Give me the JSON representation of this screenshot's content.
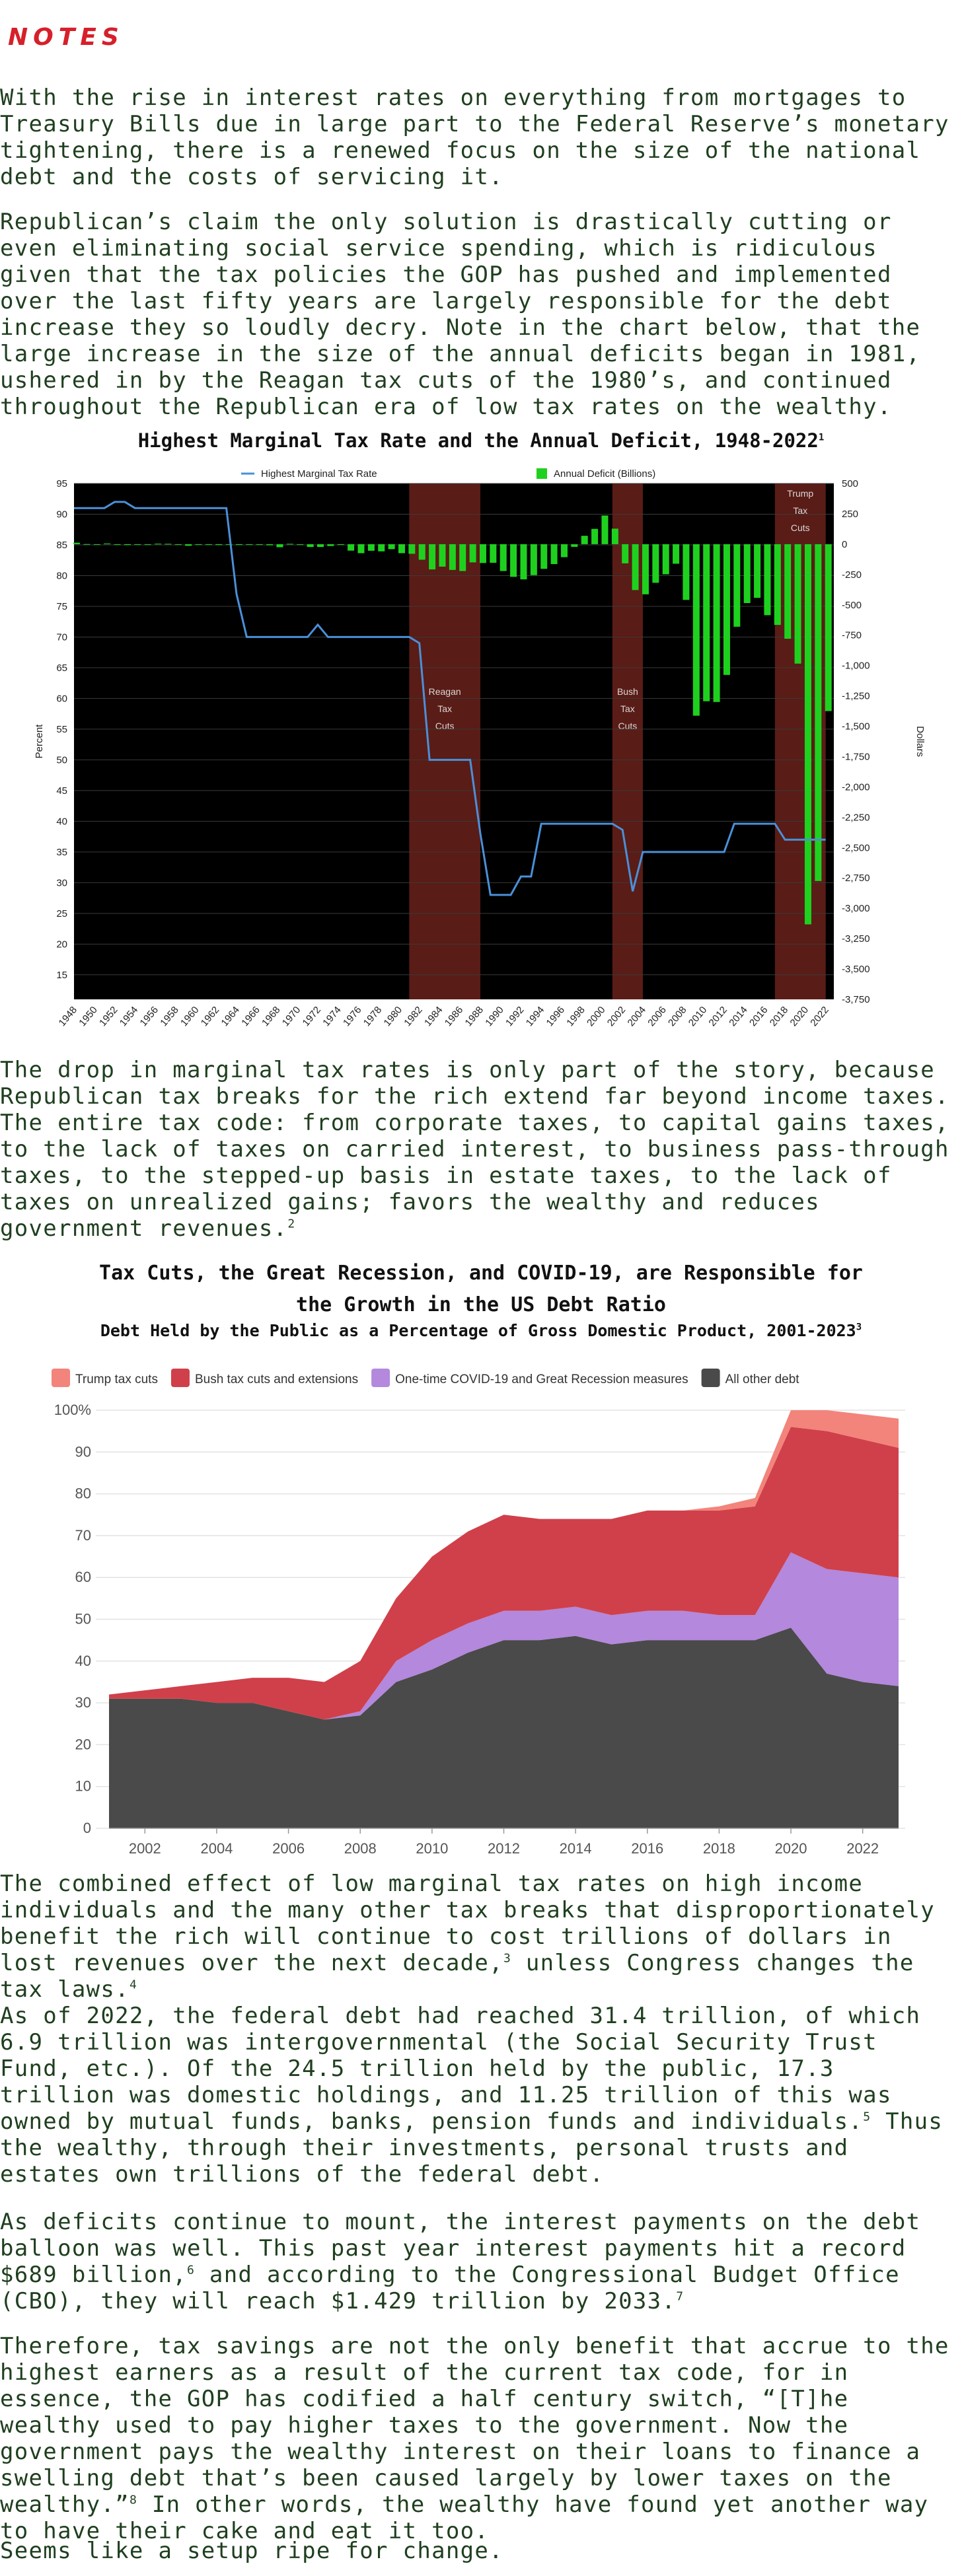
{
  "notes_heading": "NOTES",
  "paragraphs": {
    "p1": "With the rise in interest rates on everything from mortgages to Treasury Bills due in large part to the Federal Reserve’s monetary tightening, there is a renewed focus on the size of the national debt and the costs of servicing it.",
    "p2": "Republican’s claim the only solution is drastically cutting or even eliminating social service spending, which is ridiculous given that the tax policies the GOP has pushed and implemented over the last fifty years are largely responsible for the debt increase they so loudly decry.  Note in the chart below, that the large increase in the size of the annual deficits began in 1981, ushered in by the Reagan tax cuts of the 1980’s, and continued throughout the Republican era of low tax rates on the wealthy.",
    "p3": "The drop in marginal tax rates is only part of the story, because Republican tax breaks for the rich extend far beyond income taxes. The entire tax code:  from corporate taxes, to capital gains taxes, to the lack of taxes on carried interest, to business pass-through taxes, to the stepped-up basis in estate taxes, to the lack of taxes on unrealized gains; favors the wealthy and reduces government revenues.",
    "p3_sup": "2",
    "p4": "The combined effect of low marginal tax rates on high income individuals and the many other tax breaks that disproportionately benefit the rich will continue to cost trillions of dollars in lost revenues over the next decade,",
    "p4_sup1": "3",
    "p4b": " unless Congress changes the tax laws.",
    "p4_sup2": "4",
    "p5": "As of 2022, the federal debt had reached 31.4 trillion, of which 6.9 trillion was intergovernmental (the Social Security Trust Fund, etc.).  Of the 24.5 trillion held by the public, 17.3 trillion was domestic holdings, and 11.25 trillion of this was owned by mutual funds, banks, pension funds and individuals.",
    "p5_sup": "5",
    "p5b": "  Thus the wealthy, through their investments, personal trusts and estates own trillions of the federal debt.",
    "p6": "As deficits continue to mount, the interest payments on the debt balloon was well.  This past year interest payments hit a record $689 billion,",
    "p6_sup1": "6",
    "p6b": " and according to the Congressional Budget Office (CBO), they will reach $1.429 trillion by 2033.",
    "p6_sup2": "7",
    "p7": "Therefore, tax savings are not the only benefit that accrue to the highest earners as a result of the current tax code, for in essence, the GOP has codified a half century switch, “[T]he wealthy used to pay higher taxes to the government. Now the government pays the wealthy interest on their loans to finance a swelling debt that’s been caused largely by lower taxes on the wealthy.”",
    "p7_sup": "8",
    "p7b": "  In other words, the wealthy have found yet another way to have their cake and eat it too.",
    "p8": "Seems like a setup ripe for change."
  },
  "chart_data": [
    {
      "type": "line",
      "title": "Highest Marginal Tax Rate and the Annual Deficit, 1948-2022",
      "title_sup": "1",
      "background": "#000000",
      "legend_placement": "top",
      "series": [
        {
          "name": "Highest Marginal Tax Rate",
          "kind": "line",
          "axis": "left",
          "color": "#4a90d9",
          "points": [
            [
              1948,
              91
            ],
            [
              1951,
              91
            ],
            [
              1952,
              92
            ],
            [
              1953,
              92
            ],
            [
              1954,
              91
            ],
            [
              1963,
              91
            ],
            [
              1964,
              77
            ],
            [
              1965,
              70
            ],
            [
              1971,
              70
            ],
            [
              1972,
              72
            ],
            [
              1973,
              70
            ],
            [
              1981,
              70
            ],
            [
              1982,
              69
            ],
            [
              1983,
              50
            ],
            [
              1987,
              50
            ],
            [
              1988,
              38
            ],
            [
              1989,
              28
            ],
            [
              1991,
              28
            ],
            [
              1992,
              31
            ],
            [
              1993,
              31
            ],
            [
              1994,
              39.6
            ],
            [
              2001,
              39.6
            ],
            [
              2002,
              38.6
            ],
            [
              2003,
              28.6
            ],
            [
              2004,
              35
            ],
            [
              2012,
              35
            ],
            [
              2013,
              39.6
            ],
            [
              2017,
              39.6
            ],
            [
              2018,
              37
            ],
            [
              2022,
              37
            ]
          ]
        },
        {
          "name": "Annual Deficit (Billions)",
          "kind": "bar",
          "axis": "right",
          "color": "#1fd11f",
          "years": [
            1948,
            1949,
            1950,
            1951,
            1952,
            1953,
            1954,
            1955,
            1956,
            1957,
            1958,
            1959,
            1960,
            1961,
            1962,
            1963,
            1964,
            1965,
            1966,
            1967,
            1968,
            1969,
            1970,
            1971,
            1972,
            1973,
            1974,
            1975,
            1976,
            1977,
            1978,
            1979,
            1980,
            1981,
            1982,
            1983,
            1984,
            1985,
            1986,
            1987,
            1988,
            1989,
            1990,
            1991,
            1992,
            1993,
            1994,
            1995,
            1996,
            1997,
            1998,
            1999,
            2000,
            2001,
            2002,
            2003,
            2004,
            2005,
            2006,
            2007,
            2008,
            2009,
            2010,
            2011,
            2012,
            2013,
            2014,
            2015,
            2016,
            2017,
            2018,
            2019,
            2020,
            2021,
            2022
          ],
          "values": [
            12,
            1,
            -3,
            6,
            -2,
            -7,
            -1,
            -3,
            4,
            3,
            -3,
            -13,
            0,
            -3,
            -7,
            -5,
            -6,
            -1,
            -4,
            -9,
            -25,
            3,
            -3,
            -23,
            -23,
            -15,
            -6,
            -53,
            -74,
            -54,
            -59,
            -41,
            -74,
            -79,
            -128,
            -208,
            -185,
            -212,
            -221,
            -150,
            -155,
            -153,
            -221,
            -269,
            -290,
            -255,
            -203,
            -164,
            -107,
            -22,
            69,
            126,
            236,
            128,
            -158,
            -378,
            -413,
            -318,
            -248,
            -161,
            -459,
            -1413,
            -1294,
            -1300,
            -1077,
            -680,
            -485,
            -442,
            -585,
            -665,
            -779,
            -984,
            -3132,
            -2775,
            -1375
          ]
        }
      ],
      "x_ticks": [
        "1948",
        "1950",
        "1952",
        "1954",
        "1956",
        "1958",
        "1960",
        "1962",
        "1964",
        "1966",
        "1968",
        "1970",
        "1972",
        "1974",
        "1976",
        "1978",
        "1980",
        "1982",
        "1984",
        "1986",
        "1988",
        "1990",
        "1992",
        "1994",
        "1996",
        "1998",
        "2000",
        "2002",
        "2004",
        "2006",
        "2008",
        "2010",
        "2012",
        "2014",
        "2016",
        "2018",
        "2020",
        "2022"
      ],
      "y_left": {
        "label": "Percent",
        "ylim": [
          11,
          95
        ],
        "ticks": [
          "15",
          "20",
          "25",
          "30",
          "35",
          "40",
          "45",
          "50",
          "55",
          "60",
          "65",
          "70",
          "75",
          "80",
          "85",
          "90",
          "95"
        ]
      },
      "y_right": {
        "label": "Dollars",
        "ylim": [
          -3750,
          500
        ],
        "ticks": [
          "500",
          "250",
          "0",
          "-250",
          "-500",
          "-750",
          "-1,000",
          "-1,250",
          "-1,500",
          "-1,750",
          "-2,000",
          "-2,250",
          "-2,500",
          "-2,750",
          "-3,000",
          "-3,250",
          "-3,500",
          "-3,750"
        ]
      },
      "shaded_regions": [
        {
          "label": [
            "Reagan",
            "Tax",
            "Cuts"
          ],
          "from": 1981,
          "to": 1988,
          "color": "#5a1c16"
        },
        {
          "label": [
            "Bush",
            "Tax",
            "Cuts"
          ],
          "from": 2001,
          "to": 2004,
          "color": "#5a1c16"
        },
        {
          "label": [
            "Trump",
            "Tax",
            "Cuts"
          ],
          "from": 2017,
          "to": 2022,
          "color": "#5a1c16"
        }
      ],
      "grid": true
    },
    {
      "type": "area",
      "title_lines": [
        "Tax Cuts, the Great Recession, and COVID-19, are Responsible for",
        "the Growth in the US Debt Ratio"
      ],
      "subtitle": "Debt Held by the Public as a Percentage of Gross Domestic Product, 2001-2023",
      "subtitle_sup": "3",
      "legend_placement": "top-left",
      "x_ticks": [
        "2002",
        "2004",
        "2006",
        "2008",
        "2010",
        "2012",
        "2014",
        "2016",
        "2018",
        "2020",
        "2022"
      ],
      "y_ticks": [
        "0",
        "10",
        "20",
        "30",
        "40",
        "50",
        "60",
        "70",
        "80",
        "90",
        "100%"
      ],
      "ylim": [
        0,
        100
      ],
      "x": [
        2001,
        2002,
        2003,
        2004,
        2005,
        2006,
        2007,
        2008,
        2009,
        2010,
        2011,
        2012,
        2013,
        2014,
        2015,
        2016,
        2017,
        2018,
        2019,
        2020,
        2021,
        2022,
        2023
      ],
      "series": [
        {
          "name": "All other debt",
          "color": "#4a4a4a",
          "values": [
            31,
            31,
            31,
            30,
            30,
            28,
            26,
            27,
            35,
            38,
            42,
            45,
            45,
            46,
            44,
            45,
            45,
            45,
            45,
            48,
            37,
            35,
            34
          ]
        },
        {
          "name": "One-time COVID-19 and Great Recession measures",
          "color": "#b388dd",
          "values": [
            0,
            0,
            0,
            0,
            0,
            0,
            0,
            1,
            5,
            7,
            7,
            7,
            7,
            7,
            7,
            7,
            7,
            6,
            6,
            18,
            25,
            26,
            26
          ]
        },
        {
          "name": "Bush tax cuts and extensions",
          "color": "#d0404a",
          "values": [
            1,
            2,
            3,
            5,
            6,
            8,
            9,
            12,
            15,
            20,
            22,
            23,
            22,
            21,
            23,
            24,
            24,
            25,
            26,
            30,
            33,
            32,
            31
          ]
        },
        {
          "name": "Trump tax cuts",
          "color": "#f2847b",
          "values": [
            0,
            0,
            0,
            0,
            0,
            0,
            0,
            0,
            0,
            0,
            0,
            0,
            0,
            0,
            0,
            0,
            0,
            1,
            2,
            4,
            5,
            6,
            7
          ]
        }
      ],
      "grid": true
    }
  ]
}
